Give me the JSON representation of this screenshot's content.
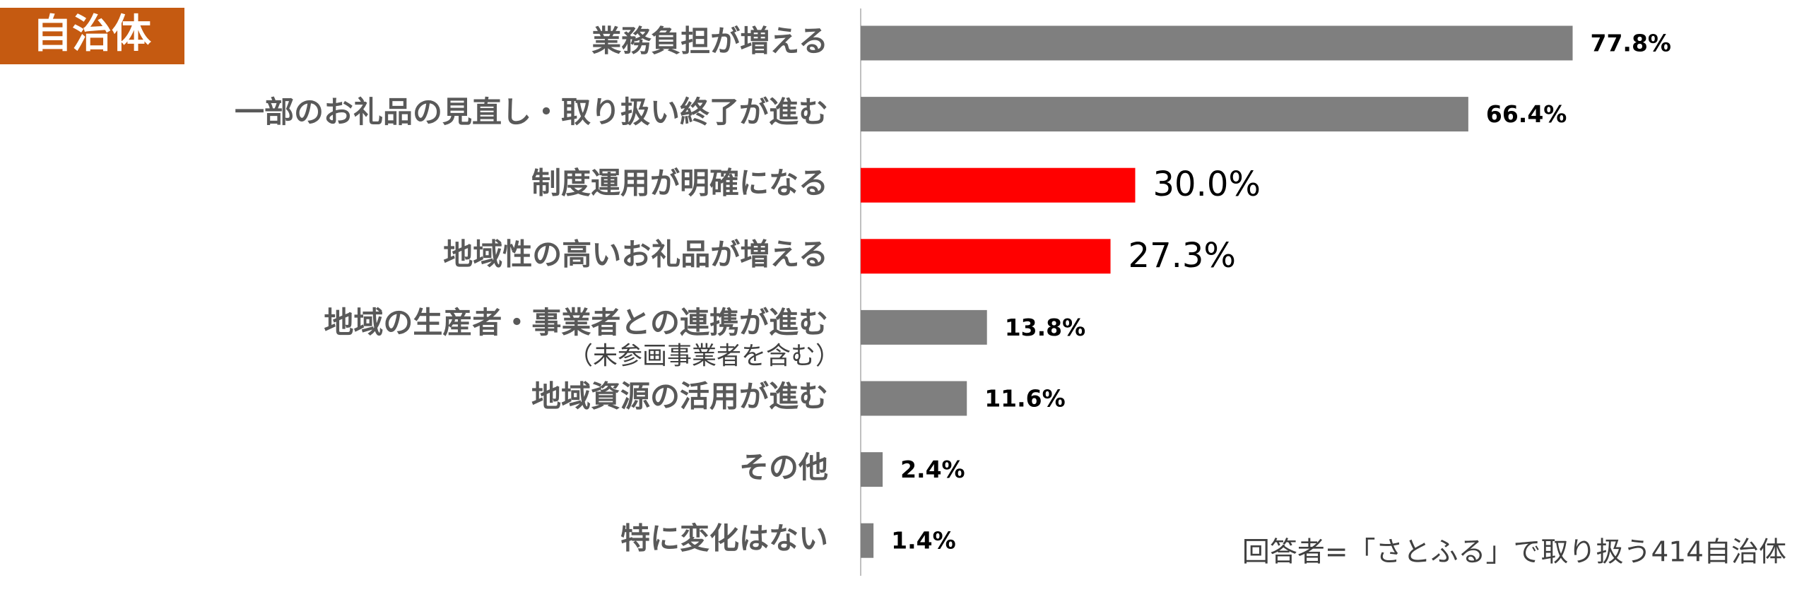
{
  "chart_data": {
    "type": "hbar",
    "badge": "自治体",
    "categories": [
      "業務負担が増える",
      "一部のお礼品の見直し・取り扱い終了が進む",
      "制度運用が明確になる",
      "地域性の高いお礼品が増える",
      [
        "地域の生産者・事業者との連携が進む",
        "（未参画事業者を含む）"
      ],
      "地域資源の活用が進む",
      "その他",
      "特に変化はない"
    ],
    "values": [
      77.8,
      66.4,
      30.0,
      27.3,
      13.8,
      11.6,
      2.4,
      1.4
    ],
    "value_labels": [
      "77.8%",
      "66.4%",
      "30.0%",
      "27.3%",
      "13.8%",
      "11.6%",
      "2.4%",
      "1.4%"
    ],
    "colors": [
      "#7f7f7f",
      "#7f7f7f",
      "#ff0000",
      "#ff0000",
      "#7f7f7f",
      "#7f7f7f",
      "#7f7f7f",
      "#7f7f7f"
    ],
    "xlim": [
      0,
      100
    ],
    "note": "回答者=「さとふる」で取り扱う414自治体"
  }
}
